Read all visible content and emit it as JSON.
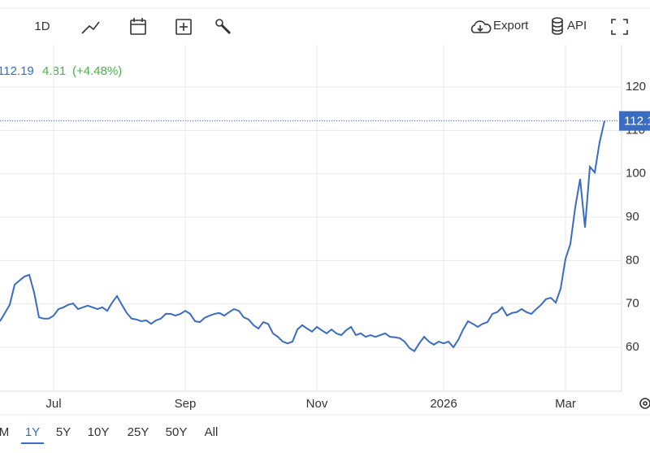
{
  "toolbar": {
    "interval": "1D",
    "export": "Export",
    "api": "API"
  },
  "quote": {
    "change": "4.81",
    "change_pct": "(+4.48%)"
  },
  "chart_data": {
    "type": "line",
    "color": "#3a6cc0",
    "grid": true,
    "categories": [
      null,
      null,
      null,
      null,
      null,
      null,
      null,
      null,
      null,
      null,
      null,
      "Jul",
      null,
      null,
      null,
      null,
      null,
      null,
      null,
      null,
      null,
      null,
      null,
      null,
      null,
      null,
      null,
      null,
      null,
      null,
      null,
      null,
      null,
      null,
      null,
      null,
      null,
      null,
      "Sep",
      null,
      null,
      null,
      null,
      null,
      null,
      null,
      null,
      null,
      null,
      null,
      null,
      null,
      null,
      null,
      null,
      null,
      null,
      null,
      null,
      null,
      null,
      null,
      null,
      null,
      null,
      "Nov",
      null,
      null,
      null,
      null,
      null,
      null,
      null,
      null,
      null,
      null,
      null,
      null,
      null,
      null,
      null,
      null,
      null,
      null,
      null,
      null,
      null,
      null,
      null,
      null,
      null,
      "2026",
      null,
      null,
      null,
      null,
      null,
      null,
      null,
      null,
      null,
      null,
      null,
      null,
      null,
      null,
      null,
      null,
      null,
      null,
      null,
      null,
      null,
      null,
      null,
      null,
      "Mar",
      null,
      null,
      null,
      null,
      null,
      null,
      null,
      null
    ],
    "values": [
      66.0,
      67.9,
      69.8,
      74.4,
      75.4,
      76.3,
      76.7,
      72.6,
      66.9,
      66.6,
      66.6,
      67.3,
      68.8,
      69.2,
      69.8,
      70.1,
      68.8,
      69.2,
      69.6,
      69.2,
      68.8,
      69.2,
      68.4,
      70.3,
      71.8,
      69.8,
      67.9,
      66.6,
      66.4,
      66.0,
      66.2,
      65.4,
      66.2,
      66.6,
      67.7,
      67.7,
      67.3,
      67.7,
      68.4,
      67.7,
      66.0,
      65.8,
      66.8,
      67.3,
      67.7,
      67.9,
      67.3,
      68.1,
      68.8,
      68.4,
      66.9,
      66.4,
      65.1,
      64.3,
      65.8,
      65.4,
      63.2,
      62.4,
      61.3,
      60.9,
      61.3,
      64.1,
      65.1,
      64.3,
      63.6,
      64.7,
      63.9,
      63.2,
      64.1,
      63.2,
      62.8,
      63.9,
      64.7,
      62.8,
      63.2,
      62.4,
      62.8,
      62.4,
      62.8,
      63.2,
      62.4,
      62.3,
      62.1,
      61.3,
      59.8,
      59.1,
      60.9,
      62.4,
      61.3,
      60.6,
      61.3,
      60.9,
      61.3,
      60.0,
      61.7,
      64.1,
      66.0,
      65.4,
      64.7,
      65.4,
      65.8,
      67.7,
      68.1,
      69.2,
      67.3,
      67.9,
      68.1,
      68.8,
      68.1,
      67.7,
      68.8,
      69.8,
      71.1,
      71.4,
      70.3,
      73.5,
      80.4,
      83.8,
      92.3,
      98.8,
      87.6,
      101.6,
      100.3,
      107.3,
      112.19
    ],
    "ylim": [
      50,
      130
    ],
    "yticks": [
      60,
      70,
      80,
      90,
      100,
      110,
      120
    ]
  },
  "ranges": [
    "M",
    "1Y",
    "5Y",
    "10Y",
    "25Y",
    "50Y",
    "All"
  ],
  "selected_range": 1
}
